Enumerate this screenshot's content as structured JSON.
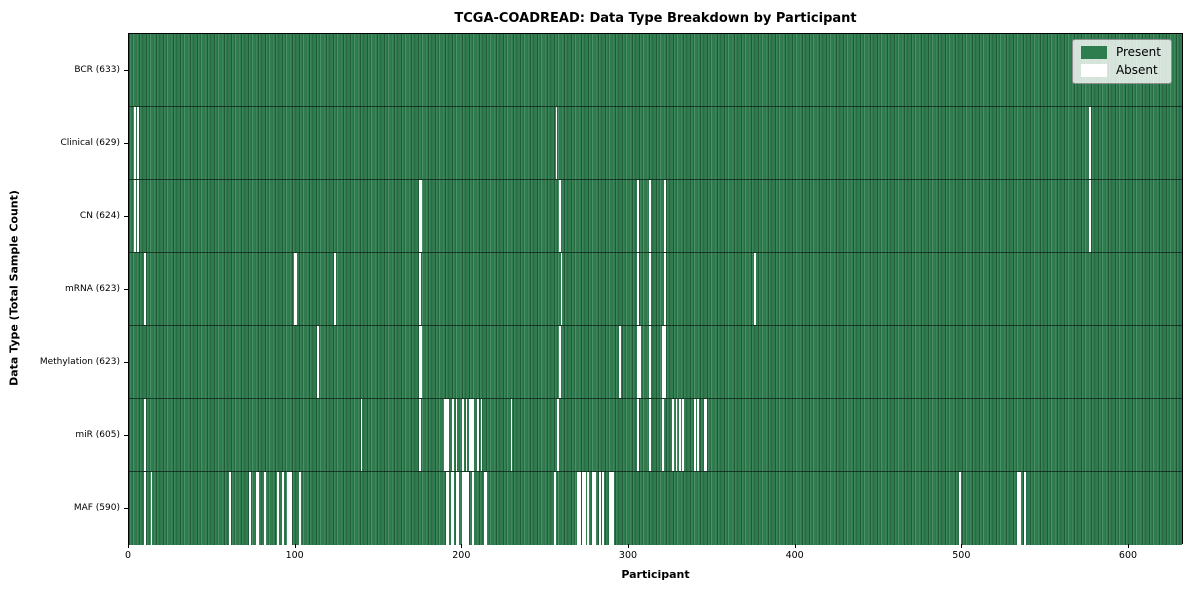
{
  "chart_data": {
    "type": "heatmap",
    "title": "TCGA-COADREAD: Data Type Breakdown by Participant",
    "xlabel": "Participant",
    "ylabel": "Data Type (Total Sample Count)",
    "x_ticks": [
      0,
      100,
      200,
      300,
      400,
      500,
      600
    ],
    "xlim": [
      0,
      633
    ],
    "n_participants": 633,
    "grid": false,
    "legend_position": "upper right",
    "colors": {
      "present": "#2e7d4f",
      "absent": "#ffffff"
    },
    "legend": {
      "present_label": "Present",
      "absent_label": "Absent"
    },
    "rows": [
      {
        "label": "BCR (633)",
        "data_type": "BCR",
        "sample_count": 633,
        "absent_participants": []
      },
      {
        "label": "Clinical (629)",
        "data_type": "Clinical",
        "sample_count": 629,
        "absent_participants": [
          3,
          5,
          256,
          576
        ]
      },
      {
        "label": "CN (624)",
        "data_type": "CN",
        "sample_count": 624,
        "absent_participants": [
          3,
          5,
          174,
          175,
          258,
          305,
          312,
          321,
          576
        ]
      },
      {
        "label": "mRNA (623)",
        "data_type": "mRNA",
        "sample_count": 623,
        "absent_participants": [
          9,
          99,
          100,
          123,
          174,
          259,
          305,
          312,
          321,
          375
        ]
      },
      {
        "label": "Methylation (623)",
        "data_type": "Methylation",
        "sample_count": 623,
        "absent_participants": [
          113,
          174,
          175,
          258,
          294,
          305,
          306,
          312,
          320,
          321
        ]
      },
      {
        "label": "miR (605)",
        "data_type": "miR",
        "sample_count": 605,
        "absent_participants": [
          9,
          139,
          174,
          189,
          190,
          191,
          194,
          196,
          200,
          202,
          204,
          205,
          206,
          209,
          211,
          229,
          257,
          305,
          312,
          320,
          326,
          328,
          330,
          332,
          339,
          341,
          345,
          346
        ]
      },
      {
        "label": "MAF (590)",
        "data_type": "MAF",
        "sample_count": 590,
        "absent_participants": [
          9,
          13,
          60,
          72,
          76,
          77,
          81,
          89,
          92,
          95,
          96,
          97,
          102,
          190,
          191,
          193,
          194,
          196,
          197,
          200,
          201,
          202,
          203,
          206,
          213,
          214,
          255,
          269,
          270,
          272,
          273,
          275,
          278,
          279,
          282,
          284,
          288,
          289,
          290,
          498,
          533,
          534,
          537
        ]
      }
    ]
  }
}
